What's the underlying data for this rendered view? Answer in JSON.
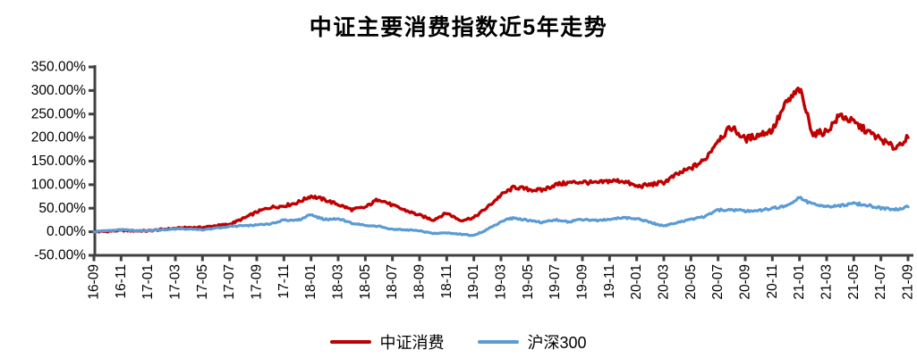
{
  "chart_data": {
    "type": "line",
    "title": "中证主要消费指数近5年走势",
    "xlabel": "",
    "ylabel": "",
    "grid": false,
    "legend_position": "bottom",
    "y_axis": {
      "min": -50,
      "max": 350,
      "step": 50,
      "unit": "%",
      "decimals": 2
    },
    "y_tick_labels": [
      "350.00%",
      "300.00%",
      "250.00%",
      "200.00%",
      "150.00%",
      "100.00%",
      "50.00%",
      "0.00%",
      "-50.00%"
    ],
    "x_tick_labels": [
      "16-09",
      "16-11",
      "17-01",
      "17-03",
      "17-05",
      "17-07",
      "17-09",
      "17-11",
      "18-01",
      "18-03",
      "18-05",
      "18-07",
      "18-09",
      "18-11",
      "19-01",
      "19-03",
      "19-05",
      "19-07",
      "19-09",
      "19-11",
      "20-01",
      "20-03",
      "20-05",
      "20-07",
      "20-09",
      "20-11",
      "21-01",
      "21-03",
      "21-05",
      "21-07",
      "21-09"
    ],
    "categories": [
      "16-09",
      "16-10",
      "16-11",
      "16-12",
      "17-01",
      "17-02",
      "17-03",
      "17-04",
      "17-05",
      "17-06",
      "17-07",
      "17-08",
      "17-09",
      "17-10",
      "17-11",
      "17-12",
      "18-01",
      "18-02",
      "18-03",
      "18-04",
      "18-05",
      "18-06",
      "18-07",
      "18-08",
      "18-09",
      "18-10",
      "18-11",
      "18-12",
      "19-01",
      "19-02",
      "19-03",
      "19-04",
      "19-05",
      "19-06",
      "19-07",
      "19-08",
      "19-09",
      "19-10",
      "19-11",
      "19-12",
      "20-01",
      "20-02",
      "20-03",
      "20-04",
      "20-05",
      "20-06",
      "20-07",
      "20-08",
      "20-09",
      "20-10",
      "20-11",
      "20-12",
      "21-01",
      "21-02",
      "21-03",
      "21-04",
      "21-05",
      "21-06",
      "21-07",
      "21-08",
      "21-09"
    ],
    "series": [
      {
        "name": "中证消费",
        "color": "#C00000",
        "unit": "%",
        "values": [
          0,
          1,
          3,
          2,
          2,
          5,
          7,
          9,
          9,
          13,
          16,
          28,
          42,
          52,
          55,
          62,
          76,
          68,
          58,
          47,
          52,
          70,
          56,
          45,
          35,
          25,
          40,
          24,
          30,
          52,
          78,
          95,
          90,
          88,
          100,
          104,
          106,
          103,
          108,
          108,
          96,
          100,
          105,
          122,
          135,
          152,
          196,
          222,
          196,
          206,
          216,
          272,
          303,
          207,
          213,
          248,
          232,
          213,
          196,
          178,
          200
        ]
      },
      {
        "name": "沪深300",
        "color": "#5B9BD5",
        "unit": "%",
        "values": [
          0,
          2,
          4,
          3,
          2,
          4,
          6,
          6,
          4,
          8,
          11,
          13,
          14,
          17,
          25,
          24,
          36,
          26,
          28,
          18,
          14,
          12,
          5,
          4,
          2,
          -4,
          -2,
          -5,
          -8,
          5,
          22,
          30,
          24,
          20,
          25,
          21,
          26,
          24,
          26,
          30,
          28,
          20,
          12,
          20,
          26,
          32,
          46,
          47,
          44,
          45,
          50,
          54,
          72,
          58,
          54,
          56,
          60,
          57,
          50,
          47,
          53
        ]
      }
    ]
  },
  "legend": {
    "items": [
      {
        "label": "中证消费",
        "color": "#C00000"
      },
      {
        "label": "沪深300",
        "color": "#5B9BD5"
      }
    ]
  },
  "style": {
    "axis_color": "#404040",
    "text_color": "#000000",
    "background": "#ffffff",
    "jitter": true
  }
}
